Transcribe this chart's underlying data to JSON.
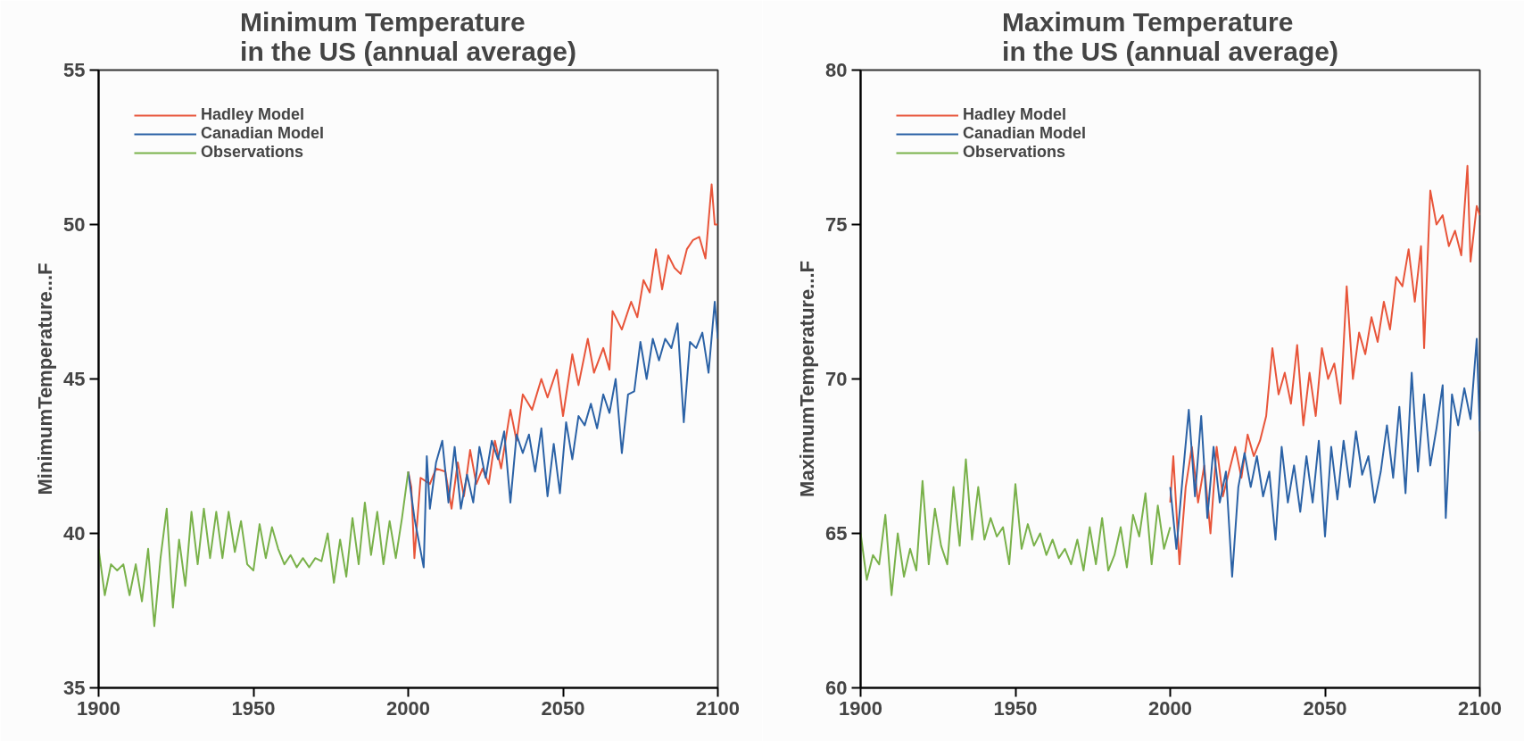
{
  "chart_data": [
    {
      "type": "line",
      "title": "Minimum Temperature\nin the US (annual average)",
      "ylabel": "MinimumTemperature...F",
      "xlim": [
        1900,
        2100
      ],
      "xticks": [
        1900,
        1950,
        2000,
        2050,
        2100
      ],
      "ylim": [
        35,
        55
      ],
      "yticks": [
        35,
        40,
        45,
        50,
        55
      ],
      "grid": false,
      "legend": "top left",
      "series": [
        {
          "name": "Hadley Model",
          "color": "#e8553a",
          "x": [
            2000,
            2001,
            2002,
            2004,
            2007,
            2009,
            2012,
            2014,
            2016,
            2018,
            2020,
            2022,
            2024,
            2026,
            2028,
            2030,
            2033,
            2035,
            2037,
            2040,
            2043,
            2045,
            2048,
            2050,
            2053,
            2055,
            2058,
            2060,
            2063,
            2065,
            2066,
            2069,
            2072,
            2074,
            2076,
            2078,
            2080,
            2082,
            2084,
            2086,
            2088,
            2090,
            2092,
            2094,
            2096,
            2098,
            2099,
            2100
          ],
          "values": [
            42.0,
            41.5,
            39.2,
            41.8,
            41.6,
            42.1,
            42.0,
            40.8,
            42.3,
            41.2,
            42.7,
            41.6,
            42.1,
            41.6,
            43.0,
            42.1,
            44.0,
            43.0,
            44.5,
            44.0,
            45.0,
            44.4,
            45.3,
            43.8,
            45.8,
            44.8,
            46.3,
            45.2,
            46.0,
            45.3,
            47.2,
            46.6,
            47.5,
            47.0,
            48.2,
            47.8,
            49.2,
            47.9,
            49.0,
            48.6,
            48.4,
            49.2,
            49.5,
            49.6,
            48.9,
            51.3,
            50.0,
            50.0
          ]
        },
        {
          "name": "Canadian Model",
          "color": "#2b62a6",
          "x": [
            2000,
            2002,
            2005,
            2006,
            2007,
            2009,
            2011,
            2013,
            2015,
            2017,
            2019,
            2021,
            2023,
            2025,
            2027,
            2029,
            2031,
            2033,
            2035,
            2037,
            2039,
            2041,
            2043,
            2045,
            2047,
            2049,
            2051,
            2053,
            2055,
            2057,
            2059,
            2061,
            2063,
            2065,
            2067,
            2069,
            2071,
            2073,
            2075,
            2077,
            2079,
            2081,
            2083,
            2085,
            2087,
            2089,
            2091,
            2093,
            2095,
            2097,
            2099,
            2100
          ],
          "values": [
            42.0,
            40.5,
            38.9,
            42.5,
            40.8,
            42.3,
            43.0,
            41.0,
            42.8,
            40.8,
            41.9,
            41.0,
            42.8,
            41.8,
            43.0,
            42.4,
            43.3,
            41.0,
            43.2,
            42.6,
            43.2,
            42.0,
            43.4,
            41.2,
            42.9,
            41.3,
            43.6,
            42.4,
            43.8,
            43.5,
            44.2,
            43.4,
            44.5,
            43.9,
            45.0,
            42.6,
            44.5,
            44.6,
            46.2,
            45.0,
            46.3,
            45.6,
            46.3,
            46.0,
            46.8,
            43.6,
            46.2,
            46.0,
            46.5,
            45.2,
            47.5,
            46.3
          ]
        },
        {
          "name": "Observations",
          "color": "#79b14a",
          "x": [
            1900,
            1902,
            1904,
            1906,
            1908,
            1910,
            1912,
            1914,
            1916,
            1918,
            1920,
            1922,
            1924,
            1926,
            1928,
            1930,
            1932,
            1934,
            1936,
            1938,
            1940,
            1942,
            1944,
            1946,
            1948,
            1950,
            1952,
            1954,
            1956,
            1958,
            1960,
            1962,
            1964,
            1966,
            1968,
            1970,
            1972,
            1974,
            1976,
            1978,
            1980,
            1982,
            1984,
            1986,
            1988,
            1990,
            1992,
            1994,
            1996,
            1998,
            2000
          ],
          "values": [
            39.5,
            38.0,
            39.0,
            38.8,
            39.0,
            38.0,
            39.0,
            37.8,
            39.5,
            37.0,
            39.2,
            40.8,
            37.6,
            39.8,
            38.3,
            40.7,
            39.0,
            40.8,
            39.2,
            40.7,
            39.2,
            40.7,
            39.4,
            40.4,
            39.0,
            38.8,
            40.3,
            39.2,
            40.2,
            39.5,
            39.0,
            39.3,
            38.9,
            39.2,
            38.9,
            39.2,
            39.1,
            40.0,
            38.4,
            39.8,
            38.6,
            40.5,
            39.0,
            41.0,
            39.3,
            40.7,
            39.0,
            40.4,
            39.2,
            40.5,
            42.0
          ]
        }
      ]
    },
    {
      "type": "line",
      "title": "Maximum Temperature\nin the US (annual average)",
      "ylabel": "MaximumTemperature...F",
      "xlim": [
        1900,
        2100
      ],
      "xticks": [
        1900,
        1950,
        2000,
        2050,
        2100
      ],
      "ylim": [
        60,
        80
      ],
      "yticks": [
        60,
        65,
        70,
        75,
        80
      ],
      "grid": false,
      "legend": "top left",
      "series": [
        {
          "name": "Hadley Model",
          "color": "#e8553a",
          "x": [
            2000,
            2001,
            2003,
            2005,
            2007,
            2009,
            2011,
            2013,
            2015,
            2017,
            2019,
            2021,
            2023,
            2025,
            2027,
            2029,
            2031,
            2033,
            2035,
            2037,
            2039,
            2041,
            2043,
            2045,
            2047,
            2049,
            2051,
            2053,
            2055,
            2057,
            2059,
            2061,
            2063,
            2065,
            2067,
            2069,
            2071,
            2073,
            2075,
            2077,
            2079,
            2081,
            2082,
            2084,
            2086,
            2088,
            2090,
            2092,
            2094,
            2096,
            2097,
            2099,
            2100
          ],
          "values": [
            66.0,
            67.5,
            64.0,
            66.5,
            67.8,
            66.0,
            67.2,
            65.0,
            67.8,
            66.2,
            67.0,
            67.8,
            66.8,
            68.2,
            67.5,
            68.0,
            68.8,
            71.0,
            69.5,
            70.2,
            69.2,
            71.1,
            68.5,
            70.2,
            68.8,
            71.0,
            70.0,
            70.5,
            69.2,
            73.0,
            70.0,
            71.5,
            70.8,
            72.0,
            71.2,
            72.5,
            71.6,
            73.3,
            73.0,
            74.2,
            72.5,
            74.3,
            71.0,
            76.1,
            75.0,
            75.3,
            74.3,
            74.8,
            74.0,
            76.9,
            73.8,
            75.6,
            75.3
          ]
        },
        {
          "name": "Canadian Model",
          "color": "#2b62a6",
          "x": [
            2000,
            2002,
            2004,
            2006,
            2008,
            2010,
            2012,
            2014,
            2016,
            2018,
            2020,
            2022,
            2024,
            2026,
            2028,
            2030,
            2032,
            2034,
            2036,
            2038,
            2040,
            2042,
            2044,
            2046,
            2048,
            2050,
            2052,
            2054,
            2056,
            2058,
            2060,
            2062,
            2064,
            2066,
            2068,
            2070,
            2072,
            2074,
            2076,
            2078,
            2080,
            2082,
            2084,
            2086,
            2088,
            2089,
            2091,
            2093,
            2095,
            2097,
            2099,
            2100
          ],
          "values": [
            66.5,
            64.5,
            66.8,
            69.0,
            66.2,
            68.8,
            65.5,
            67.8,
            66.0,
            67.0,
            63.6,
            66.5,
            67.6,
            66.5,
            67.5,
            66.2,
            67.0,
            64.8,
            67.8,
            66.0,
            67.2,
            65.7,
            67.5,
            66.0,
            68.0,
            64.9,
            67.8,
            66.1,
            68.0,
            66.5,
            68.3,
            66.9,
            67.5,
            66.0,
            67.0,
            68.5,
            66.8,
            69.1,
            66.3,
            70.2,
            67.0,
            69.5,
            67.2,
            68.4,
            69.8,
            65.5,
            69.5,
            68.5,
            69.7,
            68.7,
            71.3,
            68.3
          ]
        },
        {
          "name": "Observations",
          "color": "#79b14a",
          "x": [
            1900,
            1902,
            1904,
            1906,
            1908,
            1910,
            1912,
            1914,
            1916,
            1918,
            1920,
            1922,
            1924,
            1926,
            1928,
            1930,
            1932,
            1934,
            1936,
            1938,
            1940,
            1942,
            1944,
            1946,
            1948,
            1950,
            1952,
            1954,
            1956,
            1958,
            1960,
            1962,
            1964,
            1966,
            1968,
            1970,
            1972,
            1974,
            1976,
            1978,
            1980,
            1982,
            1984,
            1986,
            1988,
            1990,
            1992,
            1994,
            1996,
            1998,
            2000
          ],
          "values": [
            65.0,
            63.5,
            64.3,
            64.0,
            65.6,
            63.0,
            65.0,
            63.6,
            64.5,
            63.8,
            66.7,
            64.0,
            65.8,
            64.6,
            64.0,
            66.5,
            64.6,
            67.4,
            64.8,
            66.5,
            64.8,
            65.5,
            64.9,
            65.2,
            64.0,
            66.6,
            64.5,
            65.3,
            64.6,
            65.0,
            64.3,
            64.8,
            64.2,
            64.5,
            64.0,
            64.8,
            63.8,
            65.2,
            64.0,
            65.5,
            63.8,
            64.3,
            65.2,
            63.9,
            65.6,
            64.9,
            66.3,
            64.0,
            65.9,
            64.5,
            65.2
          ]
        }
      ]
    }
  ]
}
